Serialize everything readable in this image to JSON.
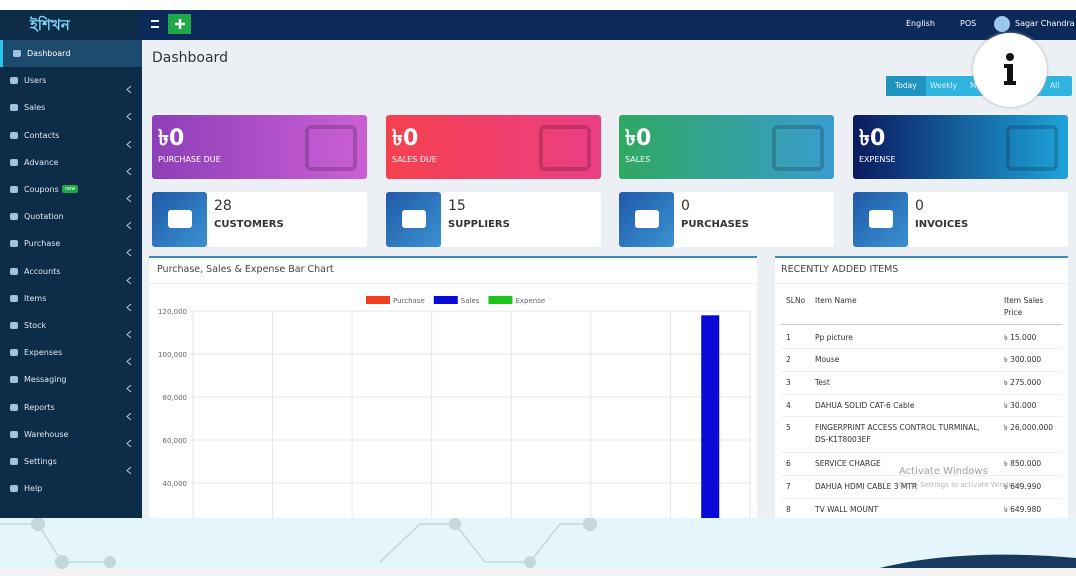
{
  "topbar": {
    "logo": "ইশিখন",
    "language": "English",
    "pos": "POS",
    "user": "Sagar Chandra"
  },
  "sidebar": {
    "items": [
      "Dashboard",
      "Users",
      "Sales",
      "Contacts",
      "Advance",
      "Coupons",
      "Quotation",
      "Purchase",
      "Accounts",
      "Items",
      "Stock",
      "Expenses",
      "Messaging",
      "Reports",
      "Warehouse",
      "Settings",
      "Help"
    ],
    "badge": "new"
  },
  "page_title": "Dashboard",
  "filters": [
    "Today",
    "Weekly",
    "M",
    "All"
  ],
  "stat_cards": [
    {
      "value": "৳0",
      "label": "PURCHASE DUE"
    },
    {
      "value": "৳0",
      "label": "SALES DUE"
    },
    {
      "value": "৳0",
      "label": "SALES"
    },
    {
      "value": "৳0",
      "label": "EXPENSE"
    }
  ],
  "count_cards": [
    {
      "value": 28,
      "label": "CUSTOMERS"
    },
    {
      "value": 15,
      "label": "SUPPLIERS"
    },
    {
      "value": 0,
      "label": "PURCHASES"
    },
    {
      "value": 0,
      "label": "INVOICES"
    }
  ],
  "chart_data": {
    "type": "bar",
    "title": "Purchase, Sales & Expense Bar Chart",
    "categories": [
      null,
      null,
      null,
      null,
      null,
      null,
      null
    ],
    "series": [
      {
        "name": "Purchase",
        "color": "#f0401f",
        "values": [
          0,
          0,
          0,
          0,
          0,
          0,
          0
        ]
      },
      {
        "name": "Sales",
        "color": "#0a0ad8",
        "values": [
          0,
          0,
          0,
          0,
          0,
          0,
          118000
        ]
      },
      {
        "name": "Expense",
        "color": "#1cc41c",
        "values": [
          0,
          0,
          0,
          0,
          0,
          0,
          0
        ]
      }
    ],
    "ylim": [
      0,
      120000
    ],
    "yticks": [
      {
        "value": 40000,
        "label": "40,000"
      },
      {
        "value": 60000,
        "label": "60,000"
      },
      {
        "value": 80000,
        "label": "80,000"
      },
      {
        "value": 100000,
        "label": "100,000"
      },
      {
        "value": 120000,
        "label": "120,000"
      }
    ],
    "grid": true,
    "legend": "top"
  },
  "recent_items": {
    "title": "RECENTLY ADDED ITEMS",
    "headers": [
      "SLNo",
      "Item Name",
      "Item Sales Price"
    ],
    "rows": [
      [
        1,
        "Pp picture",
        "৳ 15.000"
      ],
      [
        2,
        "Mouse",
        "৳ 300.000"
      ],
      [
        3,
        "Test",
        "৳ 275.000"
      ],
      [
        4,
        "DAHUA SOLID CAT-6 Cable",
        "৳ 30.000"
      ],
      [
        5,
        "FINGERPRINT ACCESS CONTROL TURMINAL, DS-K1T8003EF",
        "৳ 26,000.000"
      ],
      [
        6,
        "SERVICE CHARGE",
        "৳ 850.000"
      ],
      [
        7,
        "DAHUA HDMI CABLE 3 MTR",
        "৳ 649.990"
      ],
      [
        8,
        "TV WALL MOUNT",
        "৳ 649.980"
      ]
    ]
  },
  "watermark": {
    "title": "Activate Windows",
    "text": "Go to Settings to activate Windows."
  }
}
